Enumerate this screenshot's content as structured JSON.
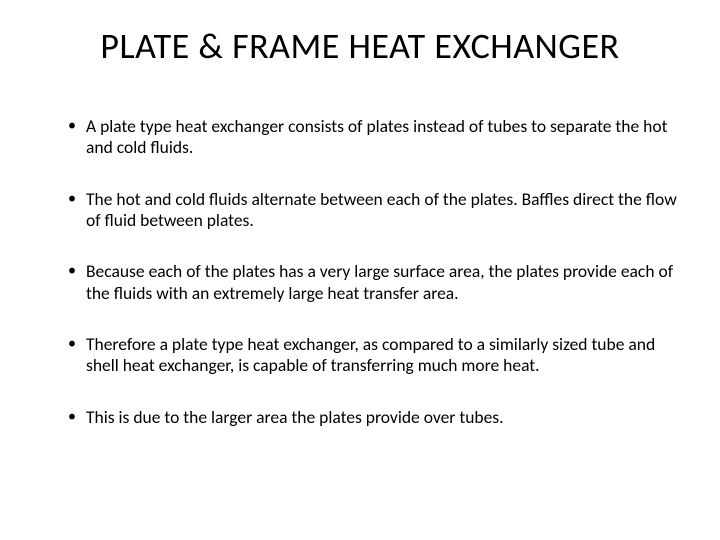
{
  "title": "PLATE & FRAME HEAT EXCHANGER",
  "bullets": [
    "A plate type heat exchanger consists of plates instead of tubes to separate the hot and cold fluids.",
    "The hot and cold fluids alternate between each of the plates. Baffles direct the flow of fluid between plates.",
    "Because each of the plates has a very large surface area, the plates provide each of the fluids with an extremely large heat transfer area.",
    "Therefore a plate type heat exchanger, as compared to a similarly sized tube and shell heat exchanger, is capable of transferring much more heat.",
    "This is due to the larger area the plates provide over tubes."
  ],
  "styling": {
    "background_color": "#ffffff",
    "text_color": "#000000",
    "title_fontsize": 36,
    "body_fontsize": 17.5,
    "font_family": "Calibri"
  }
}
